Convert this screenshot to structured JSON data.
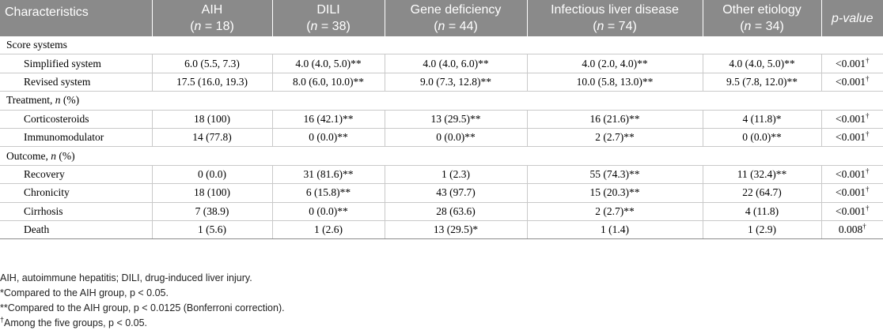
{
  "header": {
    "characteristics": "Characteristics",
    "groups": [
      {
        "name": "AIH",
        "n_label": "(n = 18)"
      },
      {
        "name": "DILI",
        "n_label": "(n = 38)"
      },
      {
        "name": "Gene deficiency",
        "n_label": "(n = 44)"
      },
      {
        "name": "Infectious liver disease",
        "n_label": "(n = 74)"
      },
      {
        "name": "Other etiology",
        "n_label": "(n = 34)"
      }
    ],
    "pvalue": "p-value"
  },
  "sections": [
    {
      "title": "Score systems",
      "rows": [
        {
          "label": "Simplified system",
          "cells": [
            "6.0 (5.5, 7.3)",
            "4.0 (4.0, 5.0)**",
            "4.0 (4.0, 6.0)**",
            "4.0 (2.0, 4.0)**",
            "4.0 (4.0, 5.0)**"
          ],
          "p": "<0.001",
          "p_mark": "†"
        },
        {
          "label": "Revised system",
          "cells": [
            "17.5 (16.0, 19.3)",
            "8.0 (6.0, 10.0)**",
            "9.0 (7.3, 12.8)**",
            "10.0 (5.8, 13.0)**",
            "9.5 (7.8, 12.0)**"
          ],
          "p": "<0.001",
          "p_mark": "†"
        }
      ]
    },
    {
      "title": "Treatment, n (%)",
      "rows": [
        {
          "label": "Corticosteroids",
          "cells": [
            "18 (100)",
            "16 (42.1)**",
            "13 (29.5)**",
            "16 (21.6)**",
            "4 (11.8)*"
          ],
          "p": "<0.001",
          "p_mark": "†"
        },
        {
          "label": "Immunomodulator",
          "cells": [
            "14 (77.8)",
            "0 (0.0)**",
            "0 (0.0)**",
            "2 (2.7)**",
            "0 (0.0)**"
          ],
          "p": "<0.001",
          "p_mark": "†"
        }
      ]
    },
    {
      "title": "Outcome, n (%)",
      "rows": [
        {
          "label": "Recovery",
          "cells": [
            "0 (0.0)",
            "31 (81.6)**",
            "1 (2.3)",
            "55 (74.3)**",
            "11 (32.4)**"
          ],
          "p": "<0.001",
          "p_mark": "†"
        },
        {
          "label": "Chronicity",
          "cells": [
            "18 (100)",
            "6 (15.8)**",
            "43 (97.7)",
            "15 (20.3)**",
            "22 (64.7)"
          ],
          "p": "<0.001",
          "p_mark": "†"
        },
        {
          "label": "Cirrhosis",
          "cells": [
            "7 (38.9)",
            "0 (0.0)**",
            "28 (63.6)",
            "2 (2.7)**",
            "4 (11.8)"
          ],
          "p": "<0.001",
          "p_mark": "†"
        },
        {
          "label": "Death",
          "cells": [
            "1 (5.6)",
            "1 (2.6)",
            "13 (29.5)*",
            "1 (1.4)",
            "1 (2.9)"
          ],
          "p": "0.008",
          "p_mark": "†"
        }
      ]
    }
  ],
  "footnotes": {
    "abbrev": "AIH, autoimmune hepatitis; DILI, drug-induced liver injury.",
    "single_star": "*Compared to the AIH group, p < 0.05.",
    "double_star": "**Compared to the AIH group, p < 0.0125 (Bonferroni correction).",
    "dagger_mark": "†",
    "dagger_text": "Among the five groups, p < 0.05."
  }
}
